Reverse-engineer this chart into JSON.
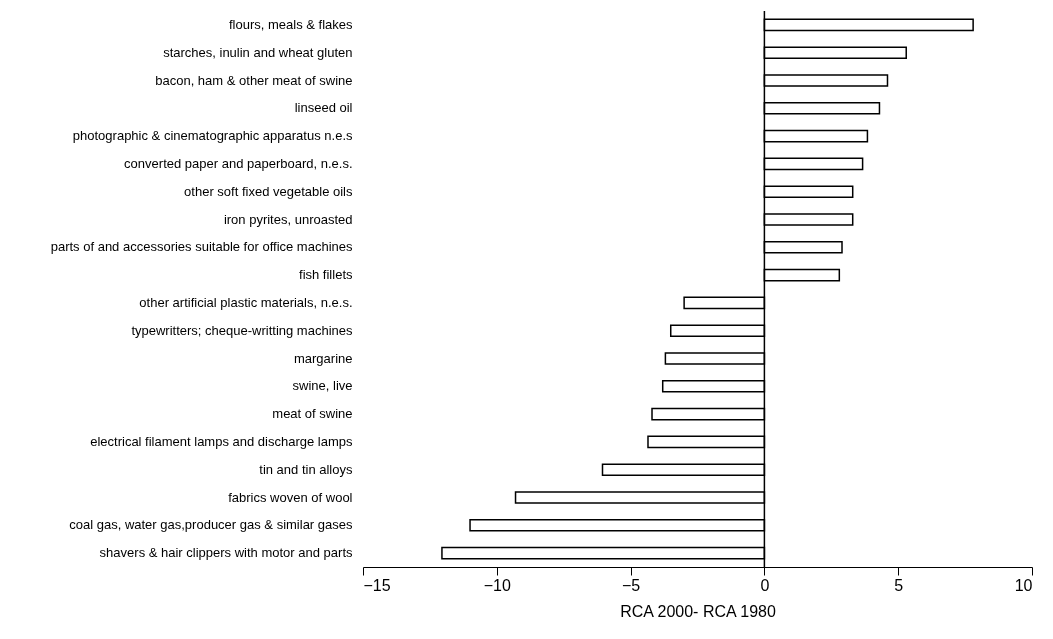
{
  "chart_data": {
    "type": "bar",
    "orientation": "horizontal",
    "xlabel": "RCA 2000- RCA 1980",
    "categories": [
      "flours, meals & flakes",
      "starches, inulin and wheat gluten",
      "bacon, ham & other meat of swine",
      "linseed oil",
      "photographic & cinematographic apparatus n.e.s",
      "converted paper and paperboard, n.e.s.",
      "other soft fixed vegetable oils",
      "iron pyrites, unroasted",
      "parts of and accessories suitable for office machines",
      "fish fillets",
      "other artificial plastic materials, n.e.s.",
      "typewritters; cheque-writting machines",
      "margarine",
      "swine, live",
      "meat of swine",
      "electrical filament lamps and discharge lamps",
      "tin and tin alloys",
      "fabrics woven of wool",
      "coal gas, water gas,producer gas & similar gases",
      "shavers & hair clippers with motor and parts"
    ],
    "values": [
      7.8,
      5.3,
      4.6,
      4.3,
      3.85,
      3.67,
      3.3,
      3.3,
      2.9,
      2.8,
      -3.0,
      -3.5,
      -3.7,
      -3.8,
      -4.2,
      -4.35,
      -6.05,
      -9.3,
      -11.0,
      -12.05
    ],
    "color": "#ffffff",
    "xlim": [
      -15,
      10
    ],
    "xticks": [
      -15,
      -10,
      -5,
      0,
      5,
      10
    ]
  }
}
